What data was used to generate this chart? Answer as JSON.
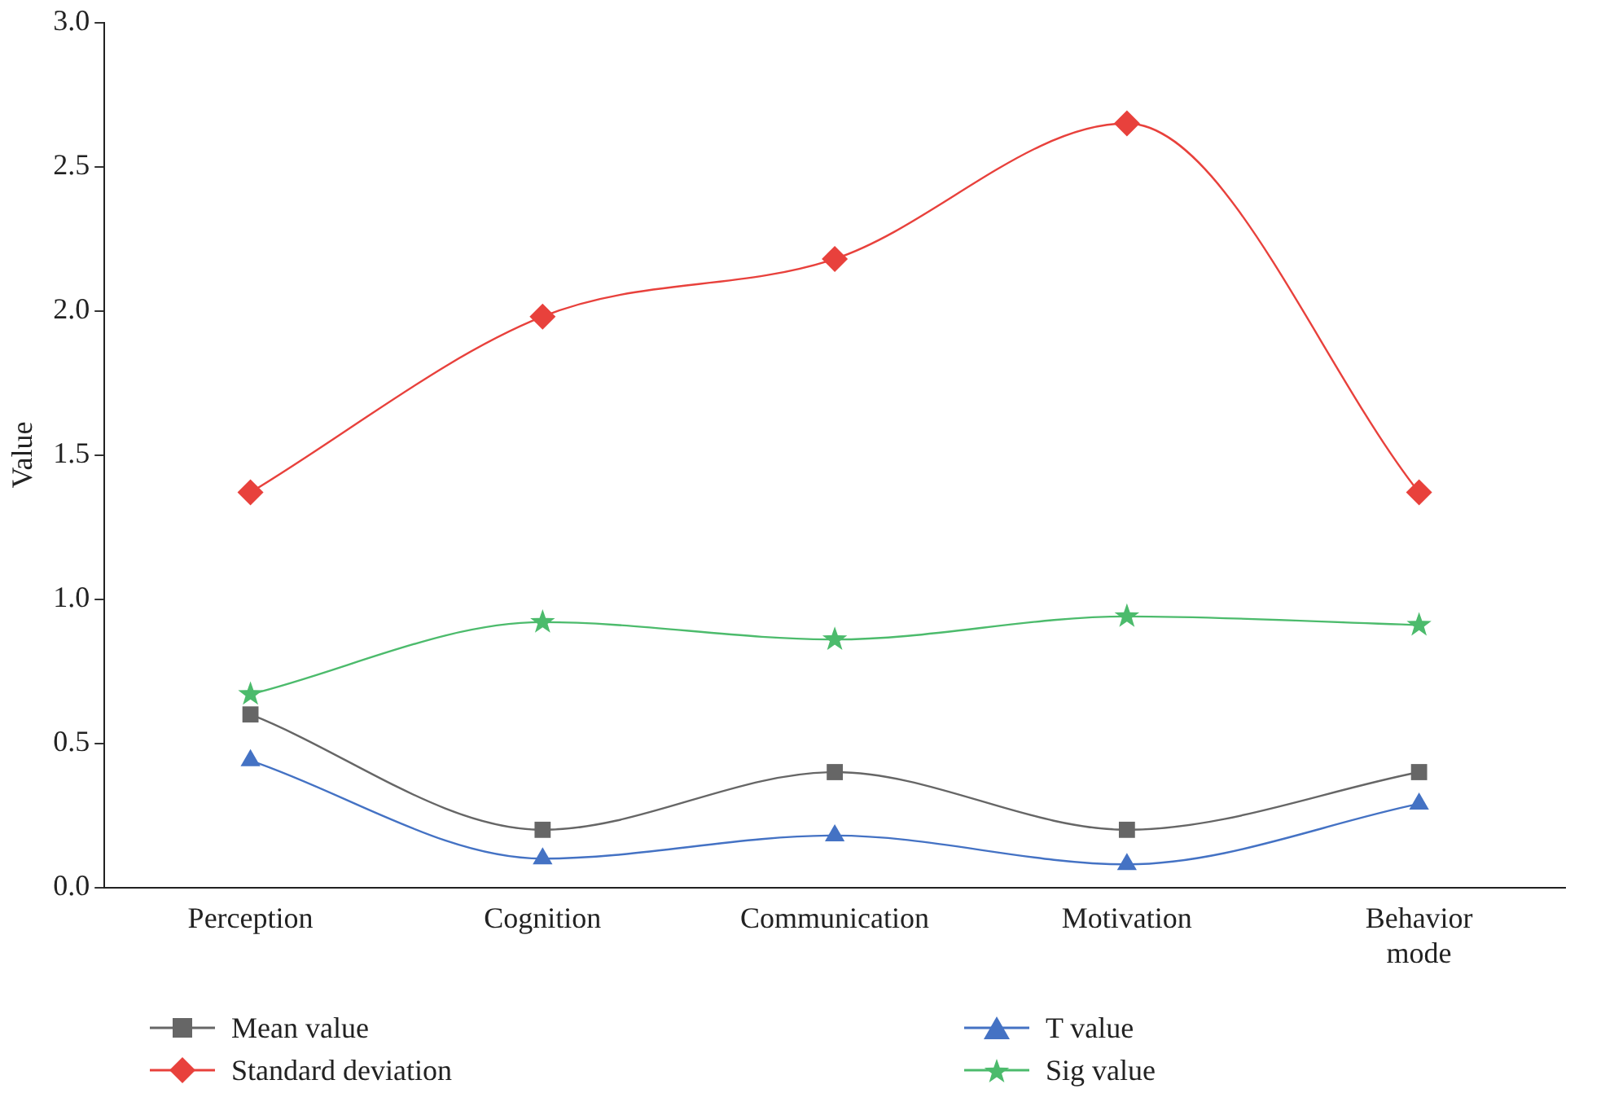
{
  "chart_data": {
    "type": "line",
    "ylabel": "Value",
    "categories": [
      "Perception",
      "Cognition",
      "Communication",
      "Motivation",
      "Behavior mode"
    ],
    "series": [
      {
        "name": "Mean value",
        "color": "#666666",
        "marker": "square",
        "values": [
          0.6,
          0.2,
          0.4,
          0.2,
          0.4
        ]
      },
      {
        "name": "Standard deviation",
        "color": "#e8413c",
        "marker": "diamond",
        "values": [
          1.37,
          1.98,
          2.18,
          2.65,
          1.37
        ]
      },
      {
        "name": "T value",
        "color": "#4472c4",
        "marker": "triangle",
        "values": [
          0.44,
          0.1,
          0.18,
          0.08,
          0.29
        ]
      },
      {
        "name": "Sig value",
        "color": "#4cbb6c",
        "marker": "star",
        "values": [
          0.67,
          0.92,
          0.86,
          0.94,
          0.91
        ]
      }
    ],
    "ylim": [
      0,
      3
    ],
    "yticks": [
      {
        "value": 0,
        "label": "0.0"
      },
      {
        "value": 0.5,
        "label": "0.5"
      },
      {
        "value": 1,
        "label": "1.0"
      },
      {
        "value": 1.5,
        "label": "1.5"
      },
      {
        "value": 2,
        "label": "2.0"
      },
      {
        "value": 2.5,
        "label": "2.5"
      },
      {
        "value": 3,
        "label": "3.0"
      }
    ],
    "grid": false,
    "legend": "bottom"
  }
}
